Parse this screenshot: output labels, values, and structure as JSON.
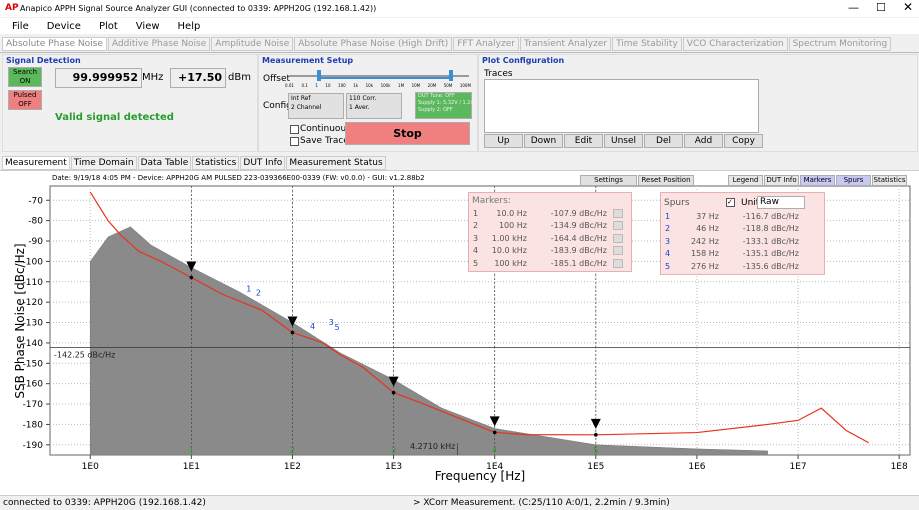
{
  "window": {
    "logo": "AP",
    "title": "Anapico APPH Signal Source Analyzer GUI (connected to 0339: APPH20G (192.168.1.42))"
  },
  "menu": [
    "File",
    "Device",
    "Plot",
    "View",
    "Help"
  ],
  "tabs": [
    "Absolute Phase Noise",
    "Additive Phase Noise",
    "Amplitude Noise",
    "Absolute Phase Noise (High Drift)",
    "FFT Analyzer",
    "Transient Analyzer",
    "Time Stability",
    "VCO Characterization",
    "Spectrum Monitoring"
  ],
  "signal_detection": {
    "title": "Signal Detection",
    "search": [
      "Search",
      "ON"
    ],
    "pulsed": [
      "Pulsed",
      "OFF"
    ],
    "frequency": "99.999952",
    "frequency_unit": "MHz",
    "power": "+17.50",
    "power_unit": "dBm",
    "status": "Valid signal detected"
  },
  "measurement_setup": {
    "title": "Measurement Setup",
    "offset": "Offset",
    "offset_ticks": [
      "0.01",
      "0.1",
      "1",
      "10",
      "100",
      "1k",
      "10k",
      "100k",
      "1M",
      "10M",
      "20M",
      "50M",
      "100M"
    ],
    "config": "Config",
    "ref": [
      "Int Ref",
      "2 Channel"
    ],
    "corr": [
      "110 Corr.",
      "1 Aver."
    ],
    "dut": [
      "DUT Tune: OFF",
      "Supply 1: 5.32V / 1.2mA",
      "Supply 2: OFF"
    ],
    "continuous": "Continuous",
    "save_trace": "Save Trace",
    "stop": "Stop"
  },
  "plot_configuration": {
    "title": "Plot Configuration",
    "traces": "Traces",
    "buttons": [
      "Up",
      "Down",
      "Edit",
      "Unsel",
      "Del",
      "Add",
      "Copy"
    ]
  },
  "subtabs": [
    "Measurement",
    "Time Domain",
    "Data Table",
    "Statistics",
    "DUT Info",
    "Measurement Status"
  ],
  "toolbar": {
    "settings": "Settings",
    "reset": "Reset Position",
    "buttons": [
      "Legend",
      "DUT Info",
      "Markers",
      "Spurs",
      "Statistics"
    ]
  },
  "status_bar": {
    "left": "connected to 0339: APPH20G (192.168.1.42)",
    "right": "> XCorr Measurement. (C:25/110 A:0/1, 2.2min / 9.3min)"
  },
  "chart_data": {
    "type": "line",
    "header": "Date: 9/19/18 4:05 PM - Device: APPH20G AM PULSED 223-039366E00-0339 (FW: v0.0.0) - GUI: v1.2.88b2",
    "x_label": "Frequency [Hz]",
    "y_label": "SSB Phase Noise [dBc/Hz]",
    "x_log": true,
    "grid": true,
    "xlim": [
      0.4,
      128000000
    ],
    "ylim": [
      -195,
      -63
    ],
    "xticks": [
      {
        "value": 1,
        "label": "1E0"
      },
      {
        "value": 10,
        "label": "1E1"
      },
      {
        "value": 100,
        "label": "1E2"
      },
      {
        "value": 1000,
        "label": "1E3"
      },
      {
        "value": 10000,
        "label": "1E4"
      },
      {
        "value": 100000,
        "label": "1E5"
      },
      {
        "value": 1000000,
        "label": "1E6"
      },
      {
        "value": 10000000,
        "label": "1E7"
      },
      {
        "value": 100000000,
        "label": "1E8"
      }
    ],
    "yticks": [
      -70,
      -80,
      -90,
      -100,
      -110,
      -120,
      -130,
      -140,
      -150,
      -160,
      -170,
      -180,
      -190
    ],
    "series": [
      {
        "style": "area",
        "color": "#8a8a8a",
        "x": [
          1,
          1.5,
          2.5,
          4,
          10,
          30,
          100,
          300,
          1000,
          3000,
          10000,
          100000,
          1000000,
          5000000
        ],
        "values": [
          -100,
          -88,
          -83,
          -92,
          -103,
          -115,
          -130,
          -145,
          -158,
          -172,
          -182,
          -190,
          -192,
          -193
        ]
      },
      {
        "style": "line",
        "color": "#e8321e",
        "x": [
          1,
          1.5,
          2,
          3,
          5,
          10,
          20,
          50,
          100,
          200,
          300,
          500,
          1000,
          2000,
          5000,
          10000,
          20000,
          100000,
          1000000,
          5000000,
          10000000,
          17000000,
          30000000,
          50000000
        ],
        "values": [
          -66,
          -80,
          -87,
          -95,
          -100,
          -107.9,
          -116,
          -124,
          -134.9,
          -140,
          -146,
          -152,
          -164.4,
          -170,
          -178,
          -183.9,
          -185,
          -185.1,
          -184,
          -180,
          -178,
          -172,
          -183,
          -189
        ]
      }
    ],
    "markers": {
      "title": "Markers:",
      "ids": [
        1,
        2,
        3,
        4,
        5
      ],
      "x": [
        10,
        100,
        1000,
        10000,
        100000
      ],
      "x_labels": [
        "10.0 Hz",
        "100 Hz",
        "1.00 kHz",
        "10.0 kHz",
        "100 kHz"
      ],
      "values": [
        -107.9,
        -134.9,
        -164.4,
        -183.9,
        -185.1
      ],
      "value_labels": [
        "-107.9 dBc/Hz",
        "-134.9 dBc/Hz",
        "-164.4 dBc/Hz",
        "-183.9 dBc/Hz",
        "-185.1 dBc/Hz"
      ]
    },
    "spurs": {
      "title": "Spurs",
      "unit": "Unit",
      "unit_value": "Raw",
      "ids": [
        1,
        2,
        3,
        4,
        5
      ],
      "x": [
        37,
        46,
        242,
        158,
        276
      ],
      "x_labels": [
        "37 Hz",
        "46 Hz",
        "242 Hz",
        "158 Hz",
        "276 Hz"
      ],
      "values": [
        -116.7,
        -118.8,
        -133.1,
        -135.1,
        -135.6
      ],
      "value_labels": [
        "-116.7 dBc/Hz",
        "-118.8 dBc/Hz",
        "-133.1 dBc/Hz",
        "-135.1 dBc/Hz",
        "-135.6 dBc/Hz"
      ]
    },
    "cursor": {
      "y": -142.25,
      "y_label": "-142.25 dBc/Hz",
      "x": 4271,
      "x_label": "4.2710 kHz"
    }
  }
}
